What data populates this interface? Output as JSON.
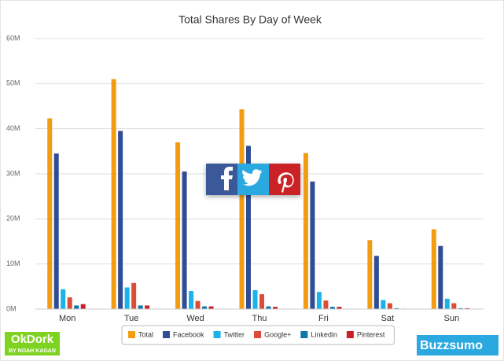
{
  "chart_data": {
    "type": "bar",
    "title": "Total Shares By Day of Week",
    "categories": [
      "Mon",
      "Tue",
      "Wed",
      "Thu",
      "Fri",
      "Sat",
      "Sun"
    ],
    "series": [
      {
        "name": "Total",
        "color": "#f39c12",
        "values": [
          42.3,
          51,
          37,
          44.3,
          34.6,
          15.3,
          17.7
        ]
      },
      {
        "name": "Facebook",
        "color": "#2f4d95",
        "values": [
          34.5,
          39.5,
          30.5,
          36.2,
          28.3,
          11.8,
          14
        ]
      },
      {
        "name": "Twitter",
        "color": "#1ab2e8",
        "values": [
          4.4,
          4.8,
          4,
          4.2,
          3.8,
          2,
          2.3
        ]
      },
      {
        "name": "Google+",
        "color": "#dd4b39",
        "values": [
          2.6,
          5.8,
          1.8,
          3.3,
          1.9,
          1.3,
          1.3
        ]
      },
      {
        "name": "Linkedin",
        "color": "#0e76a8",
        "values": [
          0.8,
          0.8,
          0.6,
          0.6,
          0.5,
          0.2,
          0.2
        ]
      },
      {
        "name": "Pinterest",
        "color": "#cb2027",
        "values": [
          1.1,
          0.8,
          0.6,
          0.5,
          0.5,
          0.1,
          0.2
        ]
      }
    ],
    "ylim": [
      0,
      60
    ],
    "yticks": [
      {
        "value": 0,
        "label": "0M"
      },
      {
        "value": 10,
        "label": "10M"
      },
      {
        "value": 20,
        "label": "20M"
      },
      {
        "value": 30,
        "label": "30M"
      },
      {
        "value": 40,
        "label": "40M"
      },
      {
        "value": 50,
        "label": "50M"
      },
      {
        "value": 60,
        "label": "60M"
      }
    ],
    "grid": true,
    "legend": "bottom"
  },
  "branding": {
    "left_logo": "OkDork",
    "left_tagline": "BY NOAH KAGAN",
    "right_logo": "Buzzsumo"
  }
}
